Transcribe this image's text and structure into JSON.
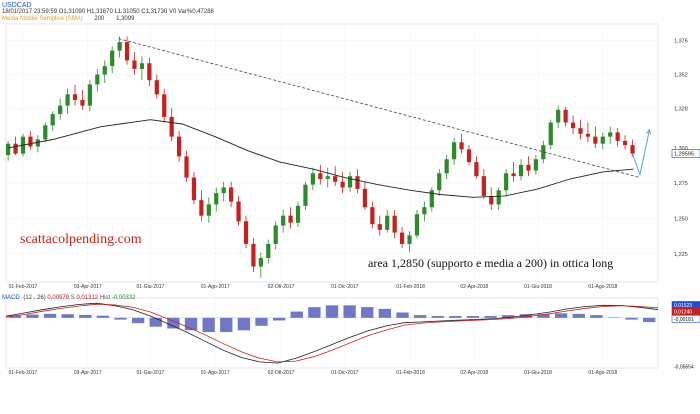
{
  "header": {
    "symbol": "USDCAD",
    "date": "18/01/2017",
    "time": "23:59:59",
    "open_label": "O",
    "open": "1,31090",
    "high_label": "H",
    "high": "1,31870",
    "low_label": "L",
    "low": "1,31050",
    "close_label": "C",
    "close": "1,31730",
    "vol_label": "V",
    "vol": "0",
    "var_label": "Var%",
    "var": "0,47288",
    "sma_label": "Media Mobile Semplice (SMA)",
    "sma_period": "200",
    "sma_value": "1,3099"
  },
  "watermark": "scattacolpending.com",
  "annotation": "area 1,2850 (supporto e media a 200) in ottica long",
  "macd": {
    "label": "MACD",
    "params": "(12 , 26)",
    "macd_value": "0,00979",
    "signal_label": "S",
    "signal_value": "0,01312",
    "hist_label": "Hist",
    "hist_value": "-0,00332"
  },
  "colors": {
    "candle_up": "#2d8a2d",
    "candle_down": "#c8201e",
    "sma": "#222222",
    "trendline": "#444444",
    "arrow": "#5aa0d8",
    "macd_line": "#222222",
    "signal_line": "#c8201e",
    "histogram": "#6f78c8",
    "last_price_box": "#1a4fd6"
  },
  "chart_data": [
    {
      "type": "candlestick",
      "title": "USDCAD",
      "x_tick_labels": [
        "01-Feb-2017",
        "03-Apr-2017",
        "01-Giu-2017",
        "01-Ago-2017",
        "02-Ott-2017",
        "01-Dic-2017",
        "01-Feb-2018",
        "02-Apr-2018",
        "01-Giu-2018",
        "01-Ago-2018"
      ],
      "x_range": [
        "2017-01-16",
        "2018-09-22"
      ],
      "y_tick_labels": [
        "1,376",
        "1,352",
        "1,328",
        "1,300",
        "1,275",
        "1,250",
        "1,225"
      ],
      "ylim": [
        1.205,
        1.385
      ],
      "last_price_label": "1,29595",
      "candles": [
        [
          "2017-01-18",
          1.295,
          1.305,
          1.291,
          1.303
        ],
        [
          "2017-01-25",
          1.303,
          1.308,
          1.295,
          1.296
        ],
        [
          "2017-02-01",
          1.296,
          1.31,
          1.294,
          1.308
        ],
        [
          "2017-02-08",
          1.308,
          1.312,
          1.299,
          1.301
        ],
        [
          "2017-02-15",
          1.301,
          1.309,
          1.297,
          1.306
        ],
        [
          "2017-02-22",
          1.306,
          1.318,
          1.304,
          1.316
        ],
        [
          "2017-03-01",
          1.316,
          1.326,
          1.312,
          1.324
        ],
        [
          "2017-03-08",
          1.324,
          1.335,
          1.32,
          1.33
        ],
        [
          "2017-03-15",
          1.33,
          1.342,
          1.324,
          1.338
        ],
        [
          "2017-03-22",
          1.338,
          1.345,
          1.33,
          1.334
        ],
        [
          "2017-03-29",
          1.334,
          1.341,
          1.327,
          1.33
        ],
        [
          "2017-04-05",
          1.33,
          1.348,
          1.326,
          1.345
        ],
        [
          "2017-04-12",
          1.345,
          1.356,
          1.34,
          1.352
        ],
        [
          "2017-04-19",
          1.352,
          1.362,
          1.346,
          1.358
        ],
        [
          "2017-04-26",
          1.358,
          1.372,
          1.353,
          1.369
        ],
        [
          "2017-05-03",
          1.369,
          1.379,
          1.364,
          1.375
        ],
        [
          "2017-05-10",
          1.375,
          1.379,
          1.359,
          1.362
        ],
        [
          "2017-05-17",
          1.362,
          1.368,
          1.352,
          1.356
        ],
        [
          "2017-05-24",
          1.356,
          1.365,
          1.348,
          1.36
        ],
        [
          "2017-05-31",
          1.36,
          1.364,
          1.344,
          1.348
        ],
        [
          "2017-06-07",
          1.348,
          1.352,
          1.335,
          1.338
        ],
        [
          "2017-06-14",
          1.338,
          1.342,
          1.318,
          1.322
        ],
        [
          "2017-06-21",
          1.322,
          1.328,
          1.305,
          1.308
        ],
        [
          "2017-06-28",
          1.308,
          1.312,
          1.29,
          1.294
        ],
        [
          "2017-07-05",
          1.294,
          1.298,
          1.276,
          1.279
        ],
        [
          "2017-07-12",
          1.279,
          1.283,
          1.26,
          1.263
        ],
        [
          "2017-07-19",
          1.263,
          1.27,
          1.248,
          1.252
        ],
        [
          "2017-07-26",
          1.252,
          1.265,
          1.247,
          1.26
        ],
        [
          "2017-08-02",
          1.26,
          1.272,
          1.255,
          1.268
        ],
        [
          "2017-08-09",
          1.268,
          1.276,
          1.262,
          1.272
        ],
        [
          "2017-08-16",
          1.272,
          1.276,
          1.258,
          1.262
        ],
        [
          "2017-08-23",
          1.262,
          1.266,
          1.245,
          1.248
        ],
        [
          "2017-08-30",
          1.248,
          1.252,
          1.229,
          1.232
        ],
        [
          "2017-09-06",
          1.232,
          1.236,
          1.212,
          1.216
        ],
        [
          "2017-09-13",
          1.216,
          1.226,
          1.208,
          1.222
        ],
        [
          "2017-09-20",
          1.222,
          1.235,
          1.218,
          1.232
        ],
        [
          "2017-09-27",
          1.232,
          1.248,
          1.228,
          1.245
        ],
        [
          "2017-10-04",
          1.245,
          1.256,
          1.24,
          1.252
        ],
        [
          "2017-10-11",
          1.252,
          1.258,
          1.243,
          1.247
        ],
        [
          "2017-10-18",
          1.247,
          1.262,
          1.244,
          1.259
        ],
        [
          "2017-10-25",
          1.259,
          1.276,
          1.256,
          1.274
        ],
        [
          "2017-11-01",
          1.274,
          1.286,
          1.27,
          1.282
        ],
        [
          "2017-11-08",
          1.282,
          1.288,
          1.274,
          1.278
        ],
        [
          "2017-11-15",
          1.278,
          1.286,
          1.272,
          1.28
        ],
        [
          "2017-11-22",
          1.28,
          1.287,
          1.273,
          1.276
        ],
        [
          "2017-11-29",
          1.276,
          1.283,
          1.268,
          1.272
        ],
        [
          "2017-12-06",
          1.272,
          1.283,
          1.269,
          1.28
        ],
        [
          "2017-12-13",
          1.28,
          1.285,
          1.268,
          1.271
        ],
        [
          "2017-12-20",
          1.271,
          1.276,
          1.256,
          1.258
        ],
        [
          "2017-12-27",
          1.258,
          1.262,
          1.243,
          1.246
        ],
        [
          "2018-01-03",
          1.246,
          1.252,
          1.238,
          1.242
        ],
        [
          "2018-01-10",
          1.242,
          1.256,
          1.24,
          1.252
        ],
        [
          "2018-01-17",
          1.252,
          1.256,
          1.236,
          1.24
        ],
        [
          "2018-01-24",
          1.24,
          1.244,
          1.229,
          1.232
        ],
        [
          "2018-01-31",
          1.232,
          1.241,
          1.226,
          1.238
        ],
        [
          "2018-02-07",
          1.238,
          1.256,
          1.236,
          1.253
        ],
        [
          "2018-02-14",
          1.253,
          1.262,
          1.248,
          1.258
        ],
        [
          "2018-02-21",
          1.258,
          1.272,
          1.255,
          1.27
        ],
        [
          "2018-02-28",
          1.27,
          1.285,
          1.266,
          1.282
        ],
        [
          "2018-03-07",
          1.282,
          1.295,
          1.278,
          1.292
        ],
        [
          "2018-03-14",
          1.292,
          1.307,
          1.288,
          1.304
        ],
        [
          "2018-03-21",
          1.304,
          1.31,
          1.296,
          1.299
        ],
        [
          "2018-03-28",
          1.299,
          1.302,
          1.288,
          1.29
        ],
        [
          "2018-04-04",
          1.29,
          1.294,
          1.278,
          1.28
        ],
        [
          "2018-04-11",
          1.28,
          1.285,
          1.264,
          1.266
        ],
        [
          "2018-04-18",
          1.266,
          1.272,
          1.256,
          1.26
        ],
        [
          "2018-04-25",
          1.26,
          1.272,
          1.256,
          1.27
        ],
        [
          "2018-05-02",
          1.27,
          1.285,
          1.266,
          1.282
        ],
        [
          "2018-05-09",
          1.282,
          1.29,
          1.276,
          1.28
        ],
        [
          "2018-05-16",
          1.28,
          1.292,
          1.277,
          1.288
        ],
        [
          "2018-05-23",
          1.288,
          1.294,
          1.28,
          1.284
        ],
        [
          "2018-05-30",
          1.284,
          1.295,
          1.281,
          1.292
        ],
        [
          "2018-06-06",
          1.292,
          1.305,
          1.289,
          1.302
        ],
        [
          "2018-06-13",
          1.302,
          1.32,
          1.299,
          1.318
        ],
        [
          "2018-06-20",
          1.318,
          1.33,
          1.314,
          1.327
        ],
        [
          "2018-06-27",
          1.327,
          1.329,
          1.315,
          1.318
        ],
        [
          "2018-07-04",
          1.318,
          1.323,
          1.31,
          1.314
        ],
        [
          "2018-07-11",
          1.314,
          1.32,
          1.306,
          1.31
        ],
        [
          "2018-07-18",
          1.31,
          1.318,
          1.304,
          1.308
        ],
        [
          "2018-07-25",
          1.308,
          1.315,
          1.3,
          1.303
        ],
        [
          "2018-08-01",
          1.303,
          1.311,
          1.299,
          1.308
        ],
        [
          "2018-08-08",
          1.308,
          1.315,
          1.303,
          1.311
        ],
        [
          "2018-08-15",
          1.311,
          1.314,
          1.301,
          1.305
        ],
        [
          "2018-08-22",
          1.305,
          1.309,
          1.299,
          1.302
        ],
        [
          "2018-08-29",
          1.302,
          1.306,
          1.294,
          1.296
        ]
      ],
      "sma200": [
        [
          "2017-01-18",
          1.3
        ],
        [
          "2017-03-01",
          1.306
        ],
        [
          "2017-04-15",
          1.315
        ],
        [
          "2017-06-01",
          1.32
        ],
        [
          "2017-07-01",
          1.317
        ],
        [
          "2017-08-01",
          1.308
        ],
        [
          "2017-09-01",
          1.298
        ],
        [
          "2017-10-01",
          1.29
        ],
        [
          "2017-11-01",
          1.285
        ],
        [
          "2017-12-01",
          1.279
        ],
        [
          "2018-01-01",
          1.274
        ],
        [
          "2018-02-01",
          1.27
        ],
        [
          "2018-03-01",
          1.267
        ],
        [
          "2018-04-01",
          1.265
        ],
        [
          "2018-05-01",
          1.266
        ],
        [
          "2018-06-01",
          1.271
        ],
        [
          "2018-07-01",
          1.278
        ],
        [
          "2018-08-01",
          1.283
        ],
        [
          "2018-08-30",
          1.285
        ]
      ],
      "trendline": [
        [
          "2017-05-02",
          1.3775
        ],
        [
          "2018-09-05",
          1.279
        ]
      ],
      "arrows": [
        {
          "points": [
            [
              "2018-08-29",
              1.296
            ],
            [
              "2018-09-05",
              1.281
            ],
            [
              "2018-09-14",
              1.313
            ]
          ]
        }
      ]
    },
    {
      "type": "line",
      "title": "MACD",
      "x_tick_labels": [
        "01-Feb-2017",
        "03-Apr-2017",
        "01-Giu-2017",
        "01-Ago-2017",
        "02-Ott-2017",
        "01-Dic-2017",
        "01-Feb-2018",
        "02-Apr-2018",
        "01-Giu-2018",
        "01-Ago-2018"
      ],
      "y_tick_labels": [
        "0,01523",
        "0,01240",
        "-0,00181",
        "-0,05654"
      ],
      "ylim": [
        -0.062,
        0.022
      ],
      "series": [
        {
          "values": [
            0.002,
            0.006,
            0.01,
            0.0135,
            0.0165,
            0.018,
            0.015,
            0.01,
            0.002,
            -0.008,
            -0.018,
            -0.029,
            -0.04,
            -0.049,
            -0.0545,
            -0.056,
            -0.05,
            -0.042,
            -0.033,
            -0.024,
            -0.016,
            -0.01,
            -0.006,
            -0.005,
            -0.004,
            -0.003,
            -0.002,
            -0.001,
            0.001,
            0.004,
            0.007,
            0.011,
            0.014,
            0.0155,
            0.0152,
            0.013,
            0.01
          ]
        },
        {
          "values": [
            0.001,
            0.004,
            0.008,
            0.0115,
            0.0145,
            0.0168,
            0.016,
            0.013,
            0.007,
            -0.002,
            -0.011,
            -0.021,
            -0.032,
            -0.042,
            -0.05,
            -0.0545,
            -0.0535,
            -0.048,
            -0.04,
            -0.031,
            -0.022,
            -0.015,
            -0.009,
            -0.0065,
            -0.005,
            -0.004,
            -0.003,
            -0.002,
            -0.0005,
            0.002,
            0.005,
            0.0085,
            0.0118,
            0.014,
            0.015,
            0.014,
            0.0124
          ]
        }
      ],
      "histogram": [
        0.0012,
        0.0018,
        0.0022,
        0.002,
        0.0016,
        0.0012,
        -0.001,
        -0.003,
        -0.005,
        -0.006,
        -0.007,
        -0.008,
        -0.008,
        -0.007,
        -0.0045,
        -0.0015,
        0.0035,
        0.006,
        0.007,
        0.007,
        0.006,
        0.005,
        0.003,
        0.0015,
        0.001,
        0.001,
        0.001,
        0.001,
        0.0015,
        0.002,
        0.002,
        0.0025,
        0.0022,
        0.0015,
        0.0002,
        -0.001,
        -0.0024
      ]
    }
  ]
}
